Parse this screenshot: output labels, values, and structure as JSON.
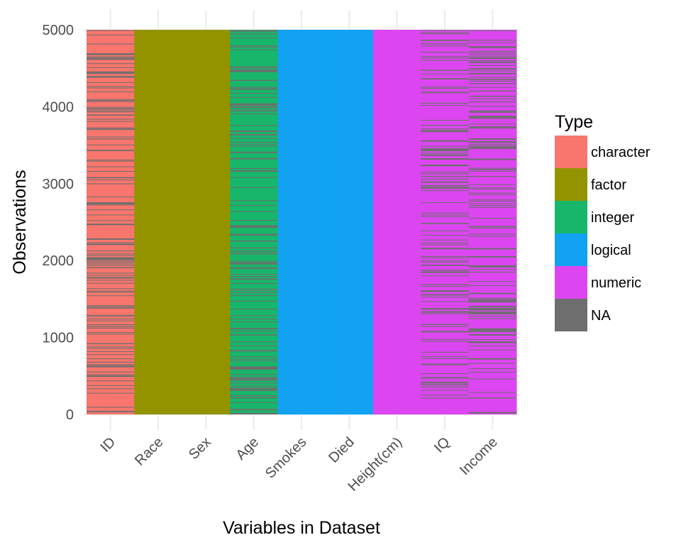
{
  "chart_data": {
    "type": "heatmap",
    "title": "",
    "xlabel": "Variables in Dataset",
    "ylabel": "Observations",
    "ylim": [
      0,
      5000
    ],
    "yticks": [
      0,
      1000,
      2000,
      3000,
      4000,
      5000
    ],
    "grid": true,
    "categories": [
      "ID",
      "Race",
      "Sex",
      "Age",
      "Smokes",
      "Died",
      "Height(cm)",
      "IQ",
      "Income"
    ],
    "variable_types": [
      "character",
      "factor",
      "factor",
      "integer",
      "logical",
      "logical",
      "numeric",
      "numeric",
      "numeric"
    ],
    "missing_fraction": [
      0.2,
      0,
      0,
      0.2,
      0,
      0,
      0,
      0.2,
      0.2
    ],
    "legend": {
      "title": "Type",
      "placement": "right",
      "entries": [
        {
          "label": "character",
          "color": "#F8766D"
        },
        {
          "label": "factor",
          "color": "#939300"
        },
        {
          "label": "integer",
          "color": "#17B66A"
        },
        {
          "label": "logical",
          "color": "#11A2F2"
        },
        {
          "label": "numeric",
          "color": "#DC46F0"
        },
        {
          "label": "NA",
          "color": "#6E6E6E"
        }
      ]
    }
  }
}
